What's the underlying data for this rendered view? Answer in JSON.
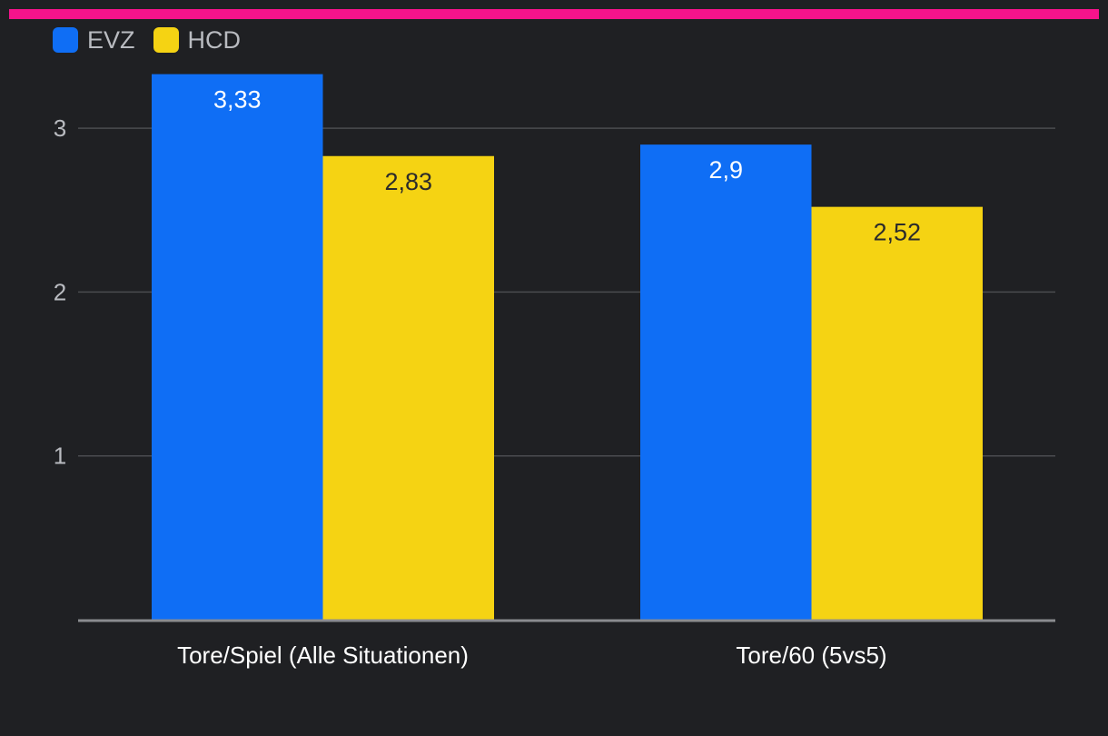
{
  "chart_data": {
    "type": "bar",
    "categories": [
      "Tore/Spiel (Alle Situationen)",
      "Tore/60 (5vs5)"
    ],
    "series": [
      {
        "name": "EVZ",
        "values": [
          3.33,
          2.9
        ],
        "labels": [
          "3,33",
          "2,9"
        ],
        "color": "#0f6ef5",
        "label_color": "#ffffff"
      },
      {
        "name": "HCD",
        "values": [
          2.83,
          2.52
        ],
        "labels": [
          "2,83",
          "2,52"
        ],
        "color": "#f5d313",
        "label_color": "#2b2b2b"
      }
    ],
    "yticks": [
      1,
      2,
      3
    ],
    "ylim": [
      0,
      3.33
    ],
    "grid": true,
    "legend_position": "top-left",
    "accent_color": "#f5138b",
    "background": "#1f2023"
  }
}
